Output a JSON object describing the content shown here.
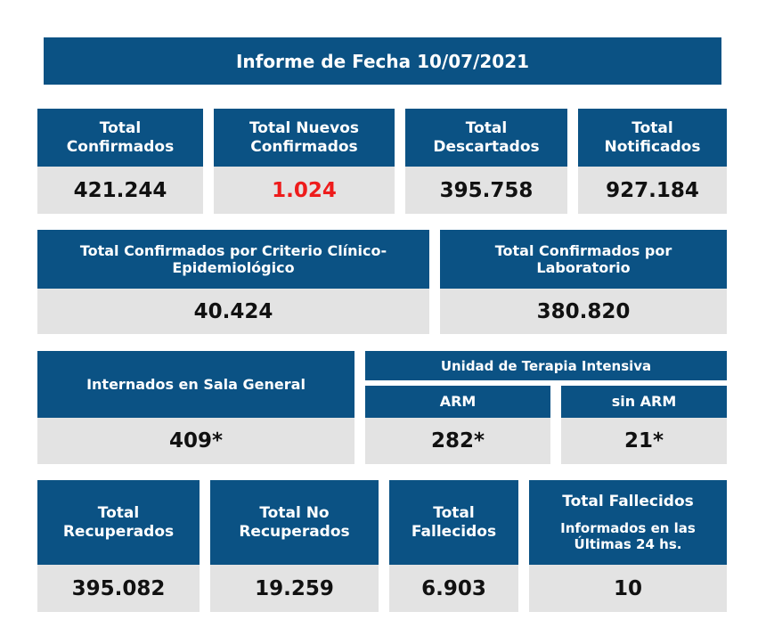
{
  "title": "Informe de Fecha 10/07/2021",
  "row1": [
    {
      "label": "Total\nConfirmados",
      "value": "421.244"
    },
    {
      "label": "Total Nuevos\nConfirmados",
      "value": "1.024"
    },
    {
      "label": "Total\nDescartados",
      "value": "395.758"
    },
    {
      "label": "Total\nNotificados",
      "value": "927.184"
    }
  ],
  "row2": [
    {
      "label": "Total Confirmados por Criterio Clínico-\nEpidemiológico",
      "value": "40.424"
    },
    {
      "label": "Total Confirmados por\nLaboratorio",
      "value": "380.820"
    }
  ],
  "row3": {
    "sala_general": {
      "label": "Internados en Sala General",
      "value": "409*"
    },
    "uti_title": "Unidad de Terapia Intensiva",
    "arm": {
      "label": "ARM",
      "value": "282*"
    },
    "sin_arm": {
      "label": "sin ARM",
      "value": "21*"
    }
  },
  "row4": [
    {
      "label": "Total\nRecuperados",
      "value": "395.082"
    },
    {
      "label": "Total No\nRecuperados",
      "value": "19.259"
    },
    {
      "label": "Total\nFallecidos",
      "value": "6.903"
    },
    {
      "label_top": "Total Fallecidos",
      "label_bottom": "Informados en las\nÚltimas 24 hs.",
      "value": "10"
    }
  ],
  "colors": {
    "header_bg": "#0b5284",
    "value_bg": "#e3e3e3",
    "highlight": "#ee1c1c"
  }
}
